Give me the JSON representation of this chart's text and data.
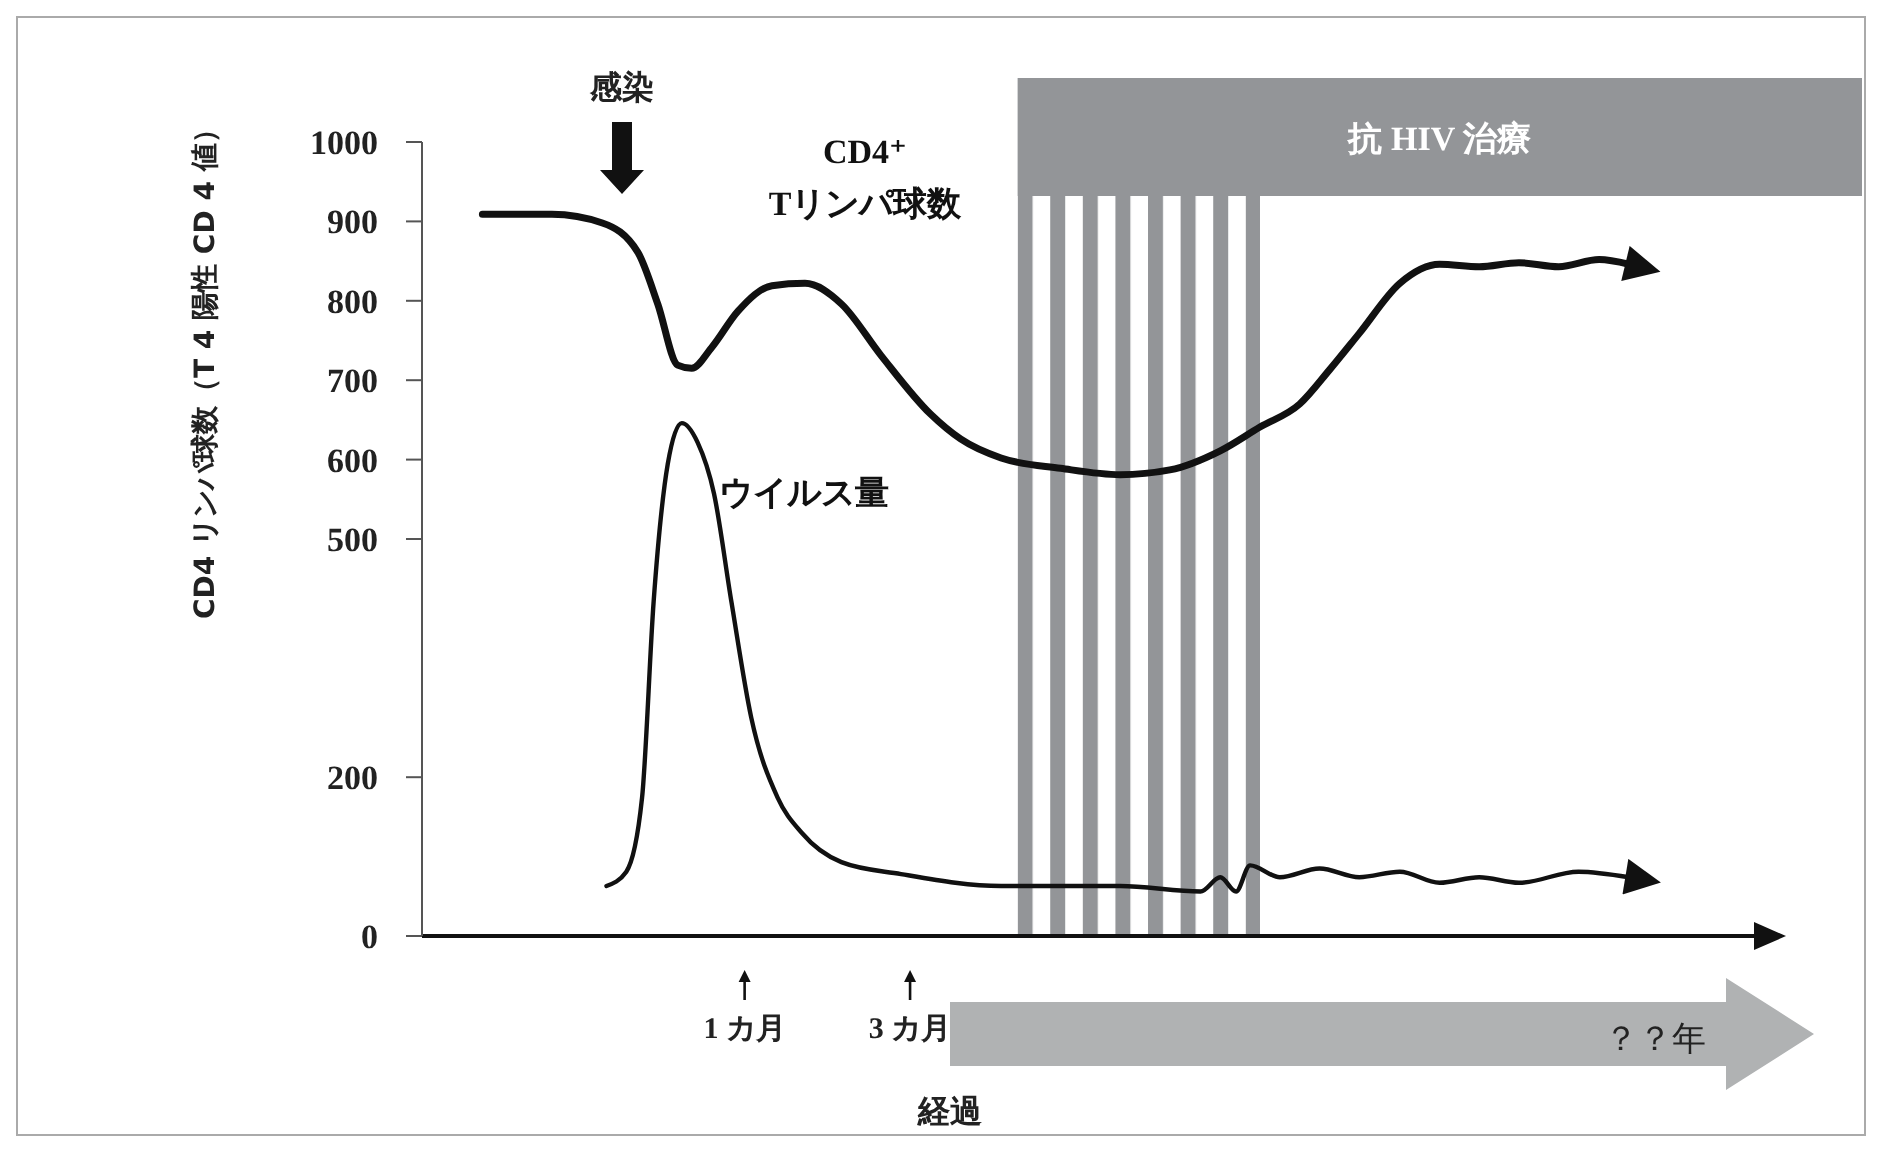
{
  "chart_data": {
    "type": "line",
    "xlabel": "経過",
    "ylabel": "CD4 リンパ球数（T 4 陽性 CD 4 値）",
    "xlim": [
      -2.9,
      13.25
    ],
    "xticks": [
      {
        "value": 1,
        "label": "1 カ月"
      },
      {
        "value": 3,
        "label": "3 カ月"
      }
    ],
    "ylim": [
      0,
      1000
    ],
    "yticks": [
      0,
      200,
      500,
      600,
      700,
      800,
      900,
      1000
    ],
    "marker": "none",
    "line_style": "solid",
    "series": [
      {
        "name": "CD4⁺\nTリンパ球数",
        "color": "#111111",
        "x": [
          -2.17,
          -1.33,
          -0.72,
          -0.29,
          -0.05,
          0.19,
          0.36,
          0.6,
          0.92,
          1.33,
          1.73,
          2.17,
          2.65,
          3.25,
          3.61,
          4.1,
          4.82,
          5.54,
          6.14,
          6.75,
          7.23,
          7.71,
          8.07,
          8.43,
          8.92,
          9.4,
          9.88,
          10.36,
          10.84,
          11.33,
          11.69
        ],
        "values": [
          909,
          909,
          898,
          861,
          796,
          719,
          715,
          741,
          787,
          819,
          822,
          796,
          731,
          657,
          626,
          602,
          589,
          581,
          587,
          611,
          641,
          670,
          713,
          759,
          822,
          846,
          843,
          848,
          843,
          852,
          846
        ]
      },
      {
        "name": "ウイルス量",
        "color": "#111111",
        "x": [
          -0.67,
          -0.43,
          -0.24,
          -0.1,
          0.07,
          0.24,
          0.43,
          0.63,
          0.84,
          1.08,
          1.4,
          1.69,
          2.17,
          2.89,
          4.1,
          5.54,
          6.51,
          6.75,
          6.94,
          7.11,
          7.47,
          7.95,
          8.43,
          8.92,
          9.4,
          9.88,
          10.36,
          11.08,
          11.69
        ],
        "values": [
          63,
          81,
          174,
          421,
          594,
          646,
          622,
          557,
          421,
          275,
          174,
          130,
          93,
          78,
          63,
          63,
          56,
          74,
          56,
          89,
          74,
          85,
          74,
          81,
          67,
          74,
          67,
          81,
          74
        ]
      }
    ],
    "bands": [
      {
        "axis": "x",
        "from": 4.3,
        "to": 7.23,
        "label": "抗 HIV 治療",
        "color": "#939598"
      }
    ],
    "annotations": [
      "感染",
      "？？年"
    ]
  }
}
